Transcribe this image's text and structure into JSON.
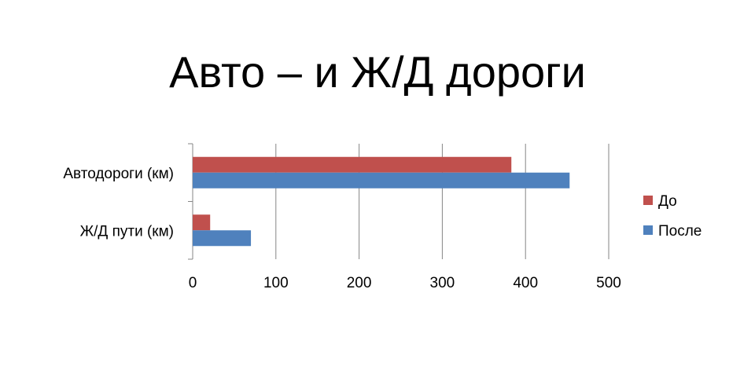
{
  "slide": {
    "title": "Авто – и Ж/Д дороги"
  },
  "chart_data": {
    "type": "bar",
    "orientation": "horizontal",
    "categories": [
      "Автодороги (км)",
      "Ж/Д пути (км)"
    ],
    "series": [
      {
        "name": "До",
        "values": [
          383,
          21
        ],
        "color": "#C0504D"
      },
      {
        "name": "После",
        "values": [
          453,
          70
        ],
        "color": "#4F81BD"
      }
    ],
    "xlim": [
      0,
      500
    ],
    "xticks": [
      0,
      100,
      200,
      300,
      400,
      500
    ],
    "grid": "vertical",
    "legend": "right"
  }
}
